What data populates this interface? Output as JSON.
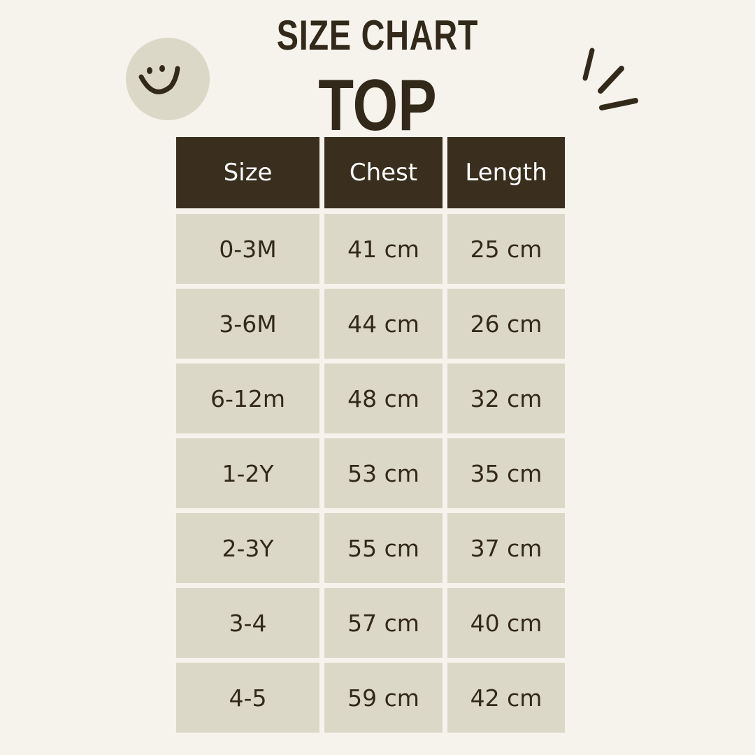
{
  "title": "SIZE CHART",
  "subtitle": "TOP",
  "colors": {
    "background": "#f6f3ec",
    "header": "#3a2e1e",
    "cell": "#dcd8c8",
    "text": "#33291a"
  },
  "icons": [
    "smiley-face-icon",
    "sparkle-lines-icon"
  ],
  "table": {
    "headers": [
      "Size",
      "Chest",
      "Length"
    ],
    "rows": [
      [
        "0-3M",
        "41 cm",
        "25 cm"
      ],
      [
        "3-6M",
        "44 cm",
        "26 cm"
      ],
      [
        "6-12m",
        "48 cm",
        "32 cm"
      ],
      [
        "1-2Y",
        "53 cm",
        "35 cm"
      ],
      [
        "2-3Y",
        "55 cm",
        "37 cm"
      ],
      [
        "3-4",
        "57 cm",
        "40 cm"
      ],
      [
        "4-5",
        "59 cm",
        "42 cm"
      ]
    ]
  }
}
